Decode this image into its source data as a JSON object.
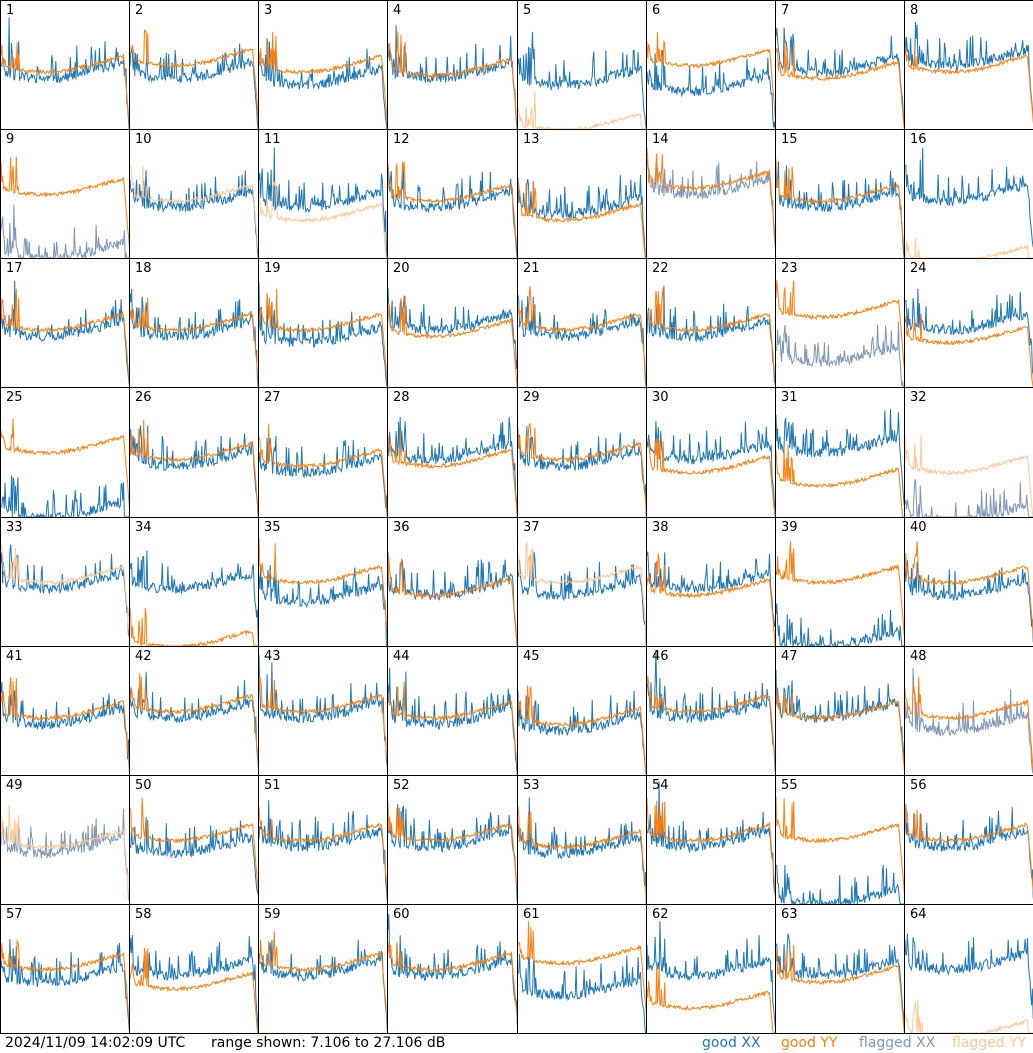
{
  "chart_data": {
    "type": "line",
    "description_units": "per-antenna bandpass power in dB vs frequency channel",
    "grid": {
      "rows": 8,
      "cols": 8
    },
    "yrange_db": [
      7.106,
      27.106
    ],
    "timestamp": "2024/11/09 14:02:09 UTC",
    "range_text": "range shown: 7.106 to 27.106 dB",
    "legend": [
      {
        "key": "good_xx",
        "label": "good XX",
        "color": "#1f77b4"
      },
      {
        "key": "good_yy",
        "label": "good YY",
        "color": "#ff7f0e"
      },
      {
        "key": "flagged_xx",
        "label": "flagged XX",
        "color": "#7f97b4"
      },
      {
        "key": "flagged_yy",
        "label": "flagged YY",
        "color": "#ffc896"
      }
    ],
    "colors": {
      "good_xx": "#1f77b4",
      "good_yy": "#ff7f0e",
      "flagged_xx": "#7f97b4",
      "flagged_yy": "#ffc896"
    },
    "panels": [
      {
        "id": "1",
        "xx": {
          "level": 16,
          "state": "good"
        },
        "yy": {
          "level": 17,
          "state": "good"
        }
      },
      {
        "id": "2",
        "xx": {
          "level": 16,
          "state": "good"
        },
        "yy": {
          "level": 18,
          "state": "good"
        }
      },
      {
        "id": "3",
        "xx": {
          "level": 15,
          "state": "good"
        },
        "yy": {
          "level": 17,
          "state": "good"
        }
      },
      {
        "id": "4",
        "xx": {
          "level": 16,
          "state": "good"
        },
        "yy": {
          "level": 16.5,
          "state": "good"
        }
      },
      {
        "id": "5",
        "xx": {
          "level": 15,
          "state": "good"
        },
        "yy": {
          "level": 8,
          "state": "flagged"
        }
      },
      {
        "id": "6",
        "xx": {
          "level": 14,
          "state": "good"
        },
        "yy": {
          "level": 18,
          "state": "good"
        }
      },
      {
        "id": "7",
        "xx": {
          "level": 17,
          "state": "good"
        },
        "yy": {
          "level": 16,
          "state": "good"
        }
      },
      {
        "id": "8",
        "xx": {
          "level": 18,
          "state": "good"
        },
        "yy": {
          "level": 17,
          "state": "good"
        }
      },
      {
        "id": "9",
        "xx": {
          "level": 8,
          "state": "flagged"
        },
        "yy": {
          "level": 18,
          "state": "good"
        }
      },
      {
        "id": "10",
        "xx": {
          "level": 16,
          "state": "good"
        },
        "yy": {
          "level": 17,
          "state": "flagged"
        }
      },
      {
        "id": "11",
        "xx": {
          "level": 16,
          "state": "good"
        },
        "yy": {
          "level": 14,
          "state": "flagged"
        }
      },
      {
        "id": "12",
        "xx": {
          "level": 16,
          "state": "good"
        },
        "yy": {
          "level": 17,
          "state": "good"
        }
      },
      {
        "id": "13",
        "xx": {
          "level": 15,
          "state": "good"
        },
        "yy": {
          "level": 14,
          "state": "good"
        }
      },
      {
        "id": "14",
        "xx": {
          "level": 18,
          "state": "flagged"
        },
        "yy": {
          "level": 19,
          "state": "good"
        }
      },
      {
        "id": "15",
        "xx": {
          "level": 16,
          "state": "good"
        },
        "yy": {
          "level": 17,
          "state": "good"
        }
      },
      {
        "id": "16",
        "xx": {
          "level": 17,
          "state": "good"
        },
        "yy": {
          "level": 7.5,
          "state": "flagged"
        }
      },
      {
        "id": "17",
        "xx": {
          "level": 16,
          "state": "good"
        },
        "yy": {
          "level": 17,
          "state": "good"
        }
      },
      {
        "id": "18",
        "xx": {
          "level": 16,
          "state": "good"
        },
        "yy": {
          "level": 17,
          "state": "good"
        }
      },
      {
        "id": "19",
        "xx": {
          "level": 15,
          "state": "good"
        },
        "yy": {
          "level": 17,
          "state": "good"
        }
      },
      {
        "id": "20",
        "xx": {
          "level": 17,
          "state": "good"
        },
        "yy": {
          "level": 16,
          "state": "good"
        }
      },
      {
        "id": "21",
        "xx": {
          "level": 16,
          "state": "good"
        },
        "yy": {
          "level": 17,
          "state": "good"
        }
      },
      {
        "id": "22",
        "xx": {
          "level": 16,
          "state": "good"
        },
        "yy": {
          "level": 17,
          "state": "good"
        }
      },
      {
        "id": "23",
        "xx": {
          "level": 12,
          "state": "flagged"
        },
        "yy": {
          "level": 19,
          "state": "good"
        }
      },
      {
        "id": "24",
        "xx": {
          "level": 17,
          "state": "good"
        },
        "yy": {
          "level": 15,
          "state": "good"
        }
      },
      {
        "id": "25",
        "xx": {
          "level": 8,
          "state": "good"
        },
        "yy": {
          "level": 18,
          "state": "good"
        }
      },
      {
        "id": "26",
        "xx": {
          "level": 16,
          "state": "good"
        },
        "yy": {
          "level": 17,
          "state": "good"
        }
      },
      {
        "id": "27",
        "xx": {
          "level": 15,
          "state": "good"
        },
        "yy": {
          "level": 16,
          "state": "good"
        }
      },
      {
        "id": "28",
        "xx": {
          "level": 17,
          "state": "good"
        },
        "yy": {
          "level": 16,
          "state": "good"
        }
      },
      {
        "id": "29",
        "xx": {
          "level": 16,
          "state": "good"
        },
        "yy": {
          "level": 17,
          "state": "good"
        }
      },
      {
        "id": "30",
        "xx": {
          "level": 17,
          "state": "good"
        },
        "yy": {
          "level": 15,
          "state": "good"
        }
      },
      {
        "id": "31",
        "xx": {
          "level": 18,
          "state": "good"
        },
        "yy": {
          "level": 13,
          "state": "good"
        }
      },
      {
        "id": "32",
        "xx": {
          "level": 7.5,
          "state": "flagged"
        },
        "yy": {
          "level": 15,
          "state": "flagged"
        }
      },
      {
        "id": "33",
        "xx": {
          "level": 17,
          "state": "good"
        },
        "yy": {
          "level": 18,
          "state": "flagged"
        }
      },
      {
        "id": "34",
        "xx": {
          "level": 17,
          "state": "good"
        },
        "yy": {
          "level": 8,
          "state": "good"
        }
      },
      {
        "id": "35",
        "xx": {
          "level": 15,
          "state": "good"
        },
        "yy": {
          "level": 18,
          "state": "good"
        }
      },
      {
        "id": "36",
        "xx": {
          "level": 16,
          "state": "good"
        },
        "yy": {
          "level": 16,
          "state": "good"
        }
      },
      {
        "id": "37",
        "xx": {
          "level": 16,
          "state": "good"
        },
        "yy": {
          "level": 18,
          "state": "flagged"
        }
      },
      {
        "id": "38",
        "xx": {
          "level": 17,
          "state": "good"
        },
        "yy": {
          "level": 16,
          "state": "good"
        }
      },
      {
        "id": "39",
        "xx": {
          "level": 8,
          "state": "good"
        },
        "yy": {
          "level": 18,
          "state": "good"
        }
      },
      {
        "id": "40",
        "xx": {
          "level": 16,
          "state": "good"
        },
        "yy": {
          "level": 18,
          "state": "good"
        }
      },
      {
        "id": "41",
        "xx": {
          "level": 16,
          "state": "good"
        },
        "yy": {
          "level": 17,
          "state": "good"
        }
      },
      {
        "id": "42",
        "xx": {
          "level": 17,
          "state": "good"
        },
        "yy": {
          "level": 18,
          "state": "good"
        }
      },
      {
        "id": "43",
        "xx": {
          "level": 17,
          "state": "good"
        },
        "yy": {
          "level": 18,
          "state": "good"
        }
      },
      {
        "id": "44",
        "xx": {
          "level": 16,
          "state": "good"
        },
        "yy": {
          "level": 17,
          "state": "good"
        }
      },
      {
        "id": "45",
        "xx": {
          "level": 15,
          "state": "good"
        },
        "yy": {
          "level": 16,
          "state": "good"
        }
      },
      {
        "id": "46",
        "xx": {
          "level": 17,
          "state": "good"
        },
        "yy": {
          "level": 18,
          "state": "good"
        }
      },
      {
        "id": "47",
        "xx": {
          "level": 17,
          "state": "good"
        },
        "yy": {
          "level": 17,
          "state": "good"
        }
      },
      {
        "id": "48",
        "xx": {
          "level": 15,
          "state": "flagged"
        },
        "yy": {
          "level": 17,
          "state": "good"
        }
      },
      {
        "id": "49",
        "xx": {
          "level": 16,
          "state": "flagged"
        },
        "yy": {
          "level": 17,
          "state": "flagged"
        }
      },
      {
        "id": "50",
        "xx": {
          "level": 16,
          "state": "good"
        },
        "yy": {
          "level": 18,
          "state": "good"
        }
      },
      {
        "id": "51",
        "xx": {
          "level": 17,
          "state": "good"
        },
        "yy": {
          "level": 18,
          "state": "good"
        }
      },
      {
        "id": "52",
        "xx": {
          "level": 17,
          "state": "good"
        },
        "yy": {
          "level": 18,
          "state": "good"
        }
      },
      {
        "id": "53",
        "xx": {
          "level": 16,
          "state": "good"
        },
        "yy": {
          "level": 17,
          "state": "good"
        }
      },
      {
        "id": "54",
        "xx": {
          "level": 17,
          "state": "good"
        },
        "yy": {
          "level": 18,
          "state": "good"
        }
      },
      {
        "id": "55",
        "xx": {
          "level": 8,
          "state": "good"
        },
        "yy": {
          "level": 18,
          "state": "good"
        }
      },
      {
        "id": "56",
        "xx": {
          "level": 17,
          "state": "good"
        },
        "yy": {
          "level": 18,
          "state": "good"
        }
      },
      {
        "id": "57",
        "xx": {
          "level": 16,
          "state": "good"
        },
        "yy": {
          "level": 18,
          "state": "good"
        }
      },
      {
        "id": "58",
        "xx": {
          "level": 17,
          "state": "good"
        },
        "yy": {
          "level": 15,
          "state": "good"
        }
      },
      {
        "id": "59",
        "xx": {
          "level": 17,
          "state": "good"
        },
        "yy": {
          "level": 18,
          "state": "good"
        }
      },
      {
        "id": "60",
        "xx": {
          "level": 17,
          "state": "good"
        },
        "yy": {
          "level": 18,
          "state": "good"
        }
      },
      {
        "id": "61",
        "xx": {
          "level": 14,
          "state": "good"
        },
        "yy": {
          "level": 19,
          "state": "good"
        }
      },
      {
        "id": "62",
        "xx": {
          "level": 17,
          "state": "good"
        },
        "yy": {
          "level": 12,
          "state": "good"
        }
      },
      {
        "id": "63",
        "xx": {
          "level": 17,
          "state": "good"
        },
        "yy": {
          "level": 16,
          "state": "good"
        }
      },
      {
        "id": "64",
        "xx": {
          "level": 18,
          "state": "good"
        },
        "yy": {
          "level": 7.5,
          "state": "flagged"
        }
      }
    ]
  }
}
